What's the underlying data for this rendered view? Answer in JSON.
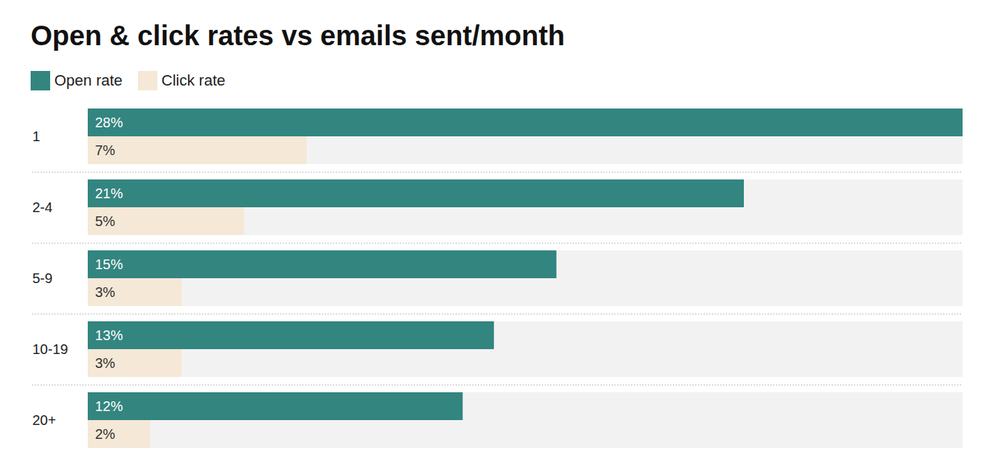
{
  "chart_data": {
    "type": "bar",
    "title": "Open & click rates vs emails sent/month",
    "orientation": "horizontal",
    "categories": [
      "1",
      "2-4",
      "5-9",
      "10-19",
      "20+"
    ],
    "series": [
      {
        "name": "Open rate",
        "color": "#338580",
        "values": [
          28,
          21,
          15,
          13,
          12
        ],
        "value_labels": [
          "28%",
          "21%",
          "15%",
          "13%",
          "12%"
        ]
      },
      {
        "name": "Click rate",
        "color": "#f5e8d6",
        "values": [
          7,
          5,
          3,
          3,
          2
        ],
        "value_labels": [
          "7%",
          "5%",
          "3%",
          "3%",
          "2%"
        ]
      }
    ],
    "xlim": [
      0,
      28
    ],
    "tick_labels": false,
    "data_labels": true,
    "legend": "top-left"
  }
}
